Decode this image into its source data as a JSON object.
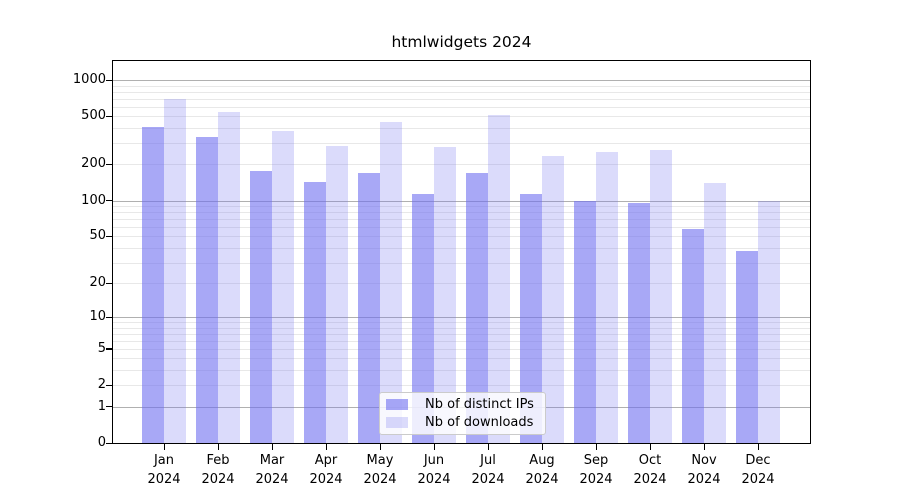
{
  "title": "htmlwidgets 2024",
  "chart_data": {
    "type": "bar",
    "title": "htmlwidgets 2024",
    "categories": [
      "Jan",
      "Feb",
      "Mar",
      "Apr",
      "May",
      "Jun",
      "Jul",
      "Aug",
      "Sep",
      "Oct",
      "Nov",
      "Dec"
    ],
    "year_label": "2024",
    "series": [
      {
        "name": "Nb of distinct IPs",
        "color": "rgba(110,110,240,0.6)",
        "values": [
          405,
          340,
          176,
          142,
          168,
          114,
          171,
          114,
          100,
          96,
          58,
          38
        ]
      },
      {
        "name": "Nb of downloads",
        "color": "rgba(110,110,240,0.25)",
        "values": [
          700,
          545,
          380,
          286,
          452,
          280,
          510,
          235,
          254,
          265,
          140,
          100
        ]
      }
    ],
    "yscale": "log1p",
    "yticks": [
      0,
      1,
      2,
      5,
      10,
      20,
      50,
      100,
      200,
      500,
      1000
    ],
    "ylim": [
      0,
      1440
    ],
    "grid": "horizontal major and minor",
    "legend_position": "lower center inside plot"
  },
  "colors": {
    "bar_base": "#6e6ef0",
    "grid_major": "#b0b0b0",
    "grid_minor": "#e8e8e8",
    "axis": "#000000",
    "legend_border": "#cbcbcb"
  }
}
